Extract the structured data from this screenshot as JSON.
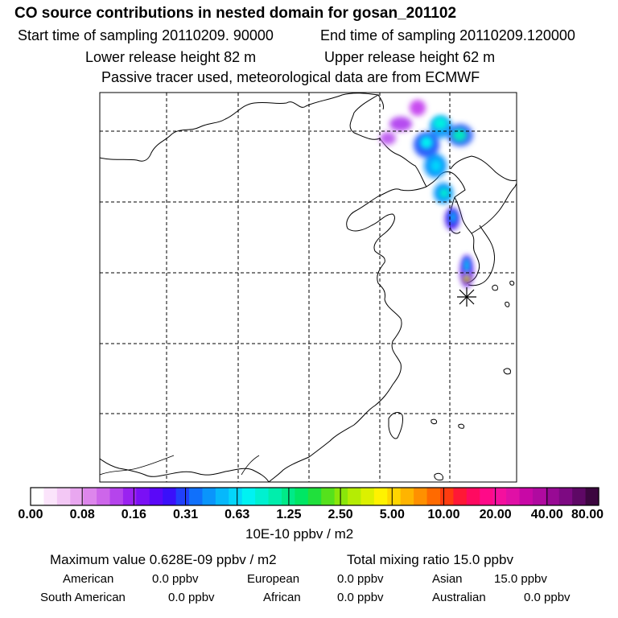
{
  "header": {
    "title": "CO  source contributions in nested domain for gosan_201102",
    "start_time": "Start time of sampling 20110209. 90000",
    "end_time": "End time of sampling 20110209.120000",
    "lower_release": "Lower release height   82 m",
    "upper_release": "Upper release height   62 m",
    "tracer_info": "Passive tracer used, meteorological data are from ECMWF"
  },
  "colorbar": {
    "ticks": [
      "0.00",
      "0.08",
      "0.16",
      "0.31",
      "0.63",
      "1.25",
      "2.50",
      "5.00",
      "10.00",
      "20.00",
      "40.00",
      "80.00"
    ],
    "units": "10E-10 ppbv / m2",
    "colors": [
      "#ffffff",
      "#fbe4fb",
      "#f3c8f5",
      "#e9a7f0",
      "#dd86ec",
      "#cd66ea",
      "#b544ec",
      "#9a22f0",
      "#7a10f5",
      "#5a08f8",
      "#3a10fa",
      "#2040fb",
      "#1070fb",
      "#0a95fb",
      "#06b8fb",
      "#04d6fb",
      "#00f2f2",
      "#00f0d0",
      "#00eeac",
      "#00ea88",
      "#00e664",
      "#20e03c",
      "#55e11c",
      "#8ae60a",
      "#b5ec04",
      "#dcf000",
      "#fff200",
      "#ffd500",
      "#ffb400",
      "#ff9000",
      "#ff6a00",
      "#ff3c10",
      "#ff1836",
      "#ff0a60",
      "#ff0a88",
      "#f4109e",
      "#e010a6",
      "#c808a6",
      "#b00aa0",
      "#980a94",
      "#7d0a82",
      "#5e0865",
      "#3c063f"
    ]
  },
  "summary": {
    "max_value": "Maximum value  0.628E-09 ppbv / m2",
    "total_mixing": "Total mixing ratio       15.0 ppbv"
  },
  "regions": [
    {
      "name": "American",
      "value": "0.0 ppbv"
    },
    {
      "name": "European",
      "value": "0.0 ppbv"
    },
    {
      "name": "Asian",
      "value": "15.0 ppbv"
    },
    {
      "name": "South American",
      "value": "0.0 ppbv"
    },
    {
      "name": "African",
      "value": "0.0 ppbv"
    },
    {
      "name": "Australian",
      "value": "0.0 ppbv"
    }
  ],
  "map": {
    "receptor_marker": "asterisk",
    "grid_style": "dashed"
  }
}
